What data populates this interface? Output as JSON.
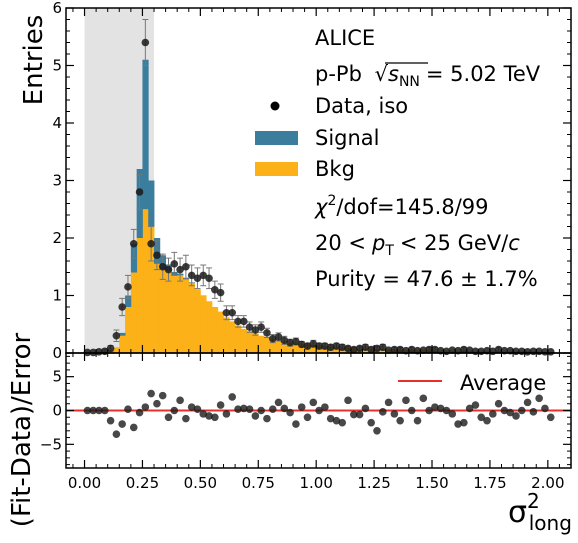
{
  "chart_data": [
    {
      "type": "bar",
      "subtype": "stacked-histogram-with-points",
      "ylabel": "Entries",
      "ylim": [
        0,
        6
      ],
      "xlim": [
        -0.08,
        2.1
      ],
      "yticks": [
        "0",
        "1",
        "2",
        "3",
        "4",
        "5",
        "6"
      ],
      "shaded_region": [
        0.0,
        0.3
      ],
      "bin_width": 0.025,
      "series": [
        {
          "name": "Signal",
          "color": "#3b7d9c",
          "x": [
            0.15,
            0.175,
            0.2,
            0.225,
            0.25,
            0.275,
            0.3,
            0.325,
            0.35,
            0.375,
            0.4,
            0.425,
            0.45,
            0.475,
            0.5
          ],
          "values": [
            0.05,
            0.2,
            0.5,
            1.2,
            2.6,
            0.8,
            0.45,
            0.25,
            0.12,
            0.06,
            0.03,
            0.02,
            0.01,
            0.005,
            0.002
          ]
        },
        {
          "name": "Bkg",
          "color": "#fbb117",
          "x": [
            0.0,
            0.025,
            0.05,
            0.075,
            0.1,
            0.125,
            0.15,
            0.175,
            0.2,
            0.225,
            0.25,
            0.275,
            0.3,
            0.325,
            0.35,
            0.375,
            0.4,
            0.425,
            0.45,
            0.475,
            0.5,
            0.525,
            0.55,
            0.575,
            0.6,
            0.625,
            0.65,
            0.675,
            0.7,
            0.725,
            0.75,
            0.775,
            0.8,
            0.825,
            0.85,
            0.875,
            0.9,
            0.925,
            0.95,
            0.975,
            1.0,
            1.025,
            1.05,
            1.075,
            1.1,
            1.125,
            1.15,
            1.175,
            1.2,
            1.225,
            1.25,
            1.275,
            1.3,
            1.325,
            1.35,
            1.375,
            1.4,
            1.425,
            1.45,
            1.475,
            1.5,
            1.525,
            1.55,
            1.575,
            1.6,
            1.625,
            1.65,
            1.675,
            1.7,
            1.725,
            1.75,
            1.775,
            1.8,
            1.825,
            1.85,
            1.875,
            1.9,
            1.925,
            1.95,
            1.975
          ],
          "values": [
            0.01,
            0.01,
            0.02,
            0.03,
            0.05,
            0.1,
            0.3,
            0.8,
            1.4,
            2.0,
            2.5,
            2.2,
            1.55,
            1.45,
            1.42,
            1.35,
            1.35,
            1.28,
            1.22,
            1.1,
            1.0,
            0.9,
            0.8,
            0.72,
            0.62,
            0.55,
            0.48,
            0.42,
            0.38,
            0.34,
            0.3,
            0.27,
            0.25,
            0.22,
            0.2,
            0.18,
            0.17,
            0.16,
            0.15,
            0.14,
            0.13,
            0.12,
            0.11,
            0.1,
            0.1,
            0.09,
            0.09,
            0.08,
            0.08,
            0.07,
            0.07,
            0.07,
            0.06,
            0.06,
            0.06,
            0.05,
            0.05,
            0.05,
            0.05,
            0.05,
            0.04,
            0.04,
            0.04,
            0.04,
            0.04,
            0.04,
            0.04,
            0.03,
            0.03,
            0.03,
            0.03,
            0.03,
            0.03,
            0.03,
            0.03,
            0.03,
            0.03,
            0.03,
            0.02,
            0.02
          ]
        },
        {
          "name": "Data, iso",
          "type": "scatter",
          "color": "#222222",
          "x": [
            0.0,
            0.025,
            0.05,
            0.075,
            0.1,
            0.125,
            0.15,
            0.175,
            0.2,
            0.225,
            0.25,
            0.275,
            0.3,
            0.325,
            0.35,
            0.375,
            0.4,
            0.425,
            0.45,
            0.475,
            0.5,
            0.525,
            0.55,
            0.575,
            0.6,
            0.625,
            0.65,
            0.675,
            0.7,
            0.725,
            0.75,
            0.775,
            0.8,
            0.825,
            0.85,
            0.875,
            0.9,
            0.925,
            0.95,
            0.975,
            1.0,
            1.025,
            1.05,
            1.075,
            1.1,
            1.125,
            1.15,
            1.175,
            1.2,
            1.225,
            1.25,
            1.275,
            1.3,
            1.325,
            1.35,
            1.375,
            1.4,
            1.425,
            1.45,
            1.475,
            1.5,
            1.525,
            1.55,
            1.575,
            1.6,
            1.625,
            1.65,
            1.675,
            1.7,
            1.725,
            1.75,
            1.775,
            1.8,
            1.825,
            1.85,
            1.875,
            1.9,
            1.925,
            1.95,
            1.975,
            2.0
          ],
          "values": [
            0.01,
            0.01,
            0.02,
            0.03,
            0.08,
            0.3,
            0.8,
            1.15,
            1.9,
            2.8,
            5.4,
            1.9,
            1.7,
            1.5,
            1.45,
            1.55,
            1.45,
            1.5,
            1.35,
            1.3,
            1.35,
            1.3,
            1.1,
            1.05,
            0.7,
            0.7,
            0.55,
            0.55,
            0.45,
            0.4,
            0.45,
            0.35,
            0.25,
            0.28,
            0.22,
            0.18,
            0.2,
            0.15,
            0.12,
            0.16,
            0.12,
            0.12,
            0.1,
            0.12,
            0.1,
            0.08,
            0.06,
            0.08,
            0.1,
            0.06,
            0.08,
            0.1,
            0.05,
            0.06,
            0.06,
            0.04,
            0.06,
            0.04,
            0.05,
            0.06,
            0.06,
            0.04,
            0.03,
            0.05,
            0.04,
            0.06,
            0.05,
            0.03,
            0.03,
            0.04,
            0.03,
            0.06,
            0.04,
            0.04,
            0.03,
            0.03,
            0.02,
            0.03,
            0.03,
            0.02,
            0.02
          ],
          "errors": [
            0.02,
            0.02,
            0.03,
            0.04,
            0.05,
            0.1,
            0.15,
            0.2,
            0.25,
            0.3,
            0.4,
            0.3,
            0.25,
            0.22,
            0.2,
            0.2,
            0.2,
            0.2,
            0.18,
            0.18,
            0.18,
            0.18,
            0.15,
            0.15,
            0.12,
            0.12,
            0.1,
            0.1,
            0.09,
            0.09,
            0.09,
            0.08,
            0.07,
            0.07,
            0.07,
            0.06,
            0.06,
            0.05,
            0.05,
            0.06,
            0.05,
            0.05,
            0.05,
            0.05,
            0.05,
            0.04,
            0.04,
            0.04,
            0.05,
            0.04,
            0.04,
            0.05,
            0.03,
            0.04,
            0.04,
            0.03,
            0.04,
            0.03,
            0.03,
            0.04,
            0.04,
            0.03,
            0.03,
            0.03,
            0.03,
            0.04,
            0.03,
            0.03,
            0.03,
            0.03,
            0.03,
            0.04,
            0.03,
            0.03,
            0.03,
            0.03,
            0.02,
            0.03,
            0.03,
            0.02,
            0.02
          ]
        }
      ],
      "annotations": [
        "ALICE",
        "p-Pb √sNN = 5.02 TeV",
        "χ²/dof=145.8/99",
        "20 < pT < 25 GeV/c",
        "Purity = 47.6 ± 1.7%"
      ]
    },
    {
      "type": "scatter",
      "ylabel": "(Fit-Data)/Error",
      "xlabel": "σ²long",
      "ylim": [
        -8.5,
        8.5
      ],
      "xlim": [
        -0.08,
        2.1
      ],
      "yticks": [
        "−5",
        "0",
        "5"
      ],
      "xticks": [
        "0.00",
        "0.25",
        "0.50",
        "0.75",
        "1.00",
        "1.25",
        "1.50",
        "1.75",
        "2.00"
      ],
      "average": 0.0,
      "average_label": "Average",
      "average_color": "#e8302a",
      "x": [
        0.0,
        0.025,
        0.05,
        0.075,
        0.1,
        0.125,
        0.15,
        0.175,
        0.2,
        0.225,
        0.25,
        0.275,
        0.3,
        0.325,
        0.35,
        0.375,
        0.4,
        0.425,
        0.45,
        0.475,
        0.5,
        0.525,
        0.55,
        0.575,
        0.6,
        0.625,
        0.65,
        0.675,
        0.7,
        0.725,
        0.75,
        0.775,
        0.8,
        0.825,
        0.85,
        0.875,
        0.9,
        0.925,
        0.95,
        0.975,
        1.0,
        1.025,
        1.05,
        1.075,
        1.1,
        1.125,
        1.15,
        1.175,
        1.2,
        1.225,
        1.25,
        1.275,
        1.3,
        1.325,
        1.35,
        1.375,
        1.4,
        1.425,
        1.45,
        1.475,
        1.5,
        1.525,
        1.55,
        1.575,
        1.6,
        1.625,
        1.65,
        1.675,
        1.7,
        1.725,
        1.75,
        1.775,
        1.8,
        1.825,
        1.85,
        1.875,
        1.9,
        1.925,
        1.95,
        1.975,
        2.0
      ],
      "values": [
        0.0,
        0.0,
        0.0,
        0.0,
        -1.5,
        -3.5,
        -2.0,
        0.2,
        -2.5,
        -0.3,
        0.5,
        2.5,
        1.0,
        2.2,
        -1.0,
        0.0,
        1.5,
        -1.2,
        0.5,
        0.2,
        -0.5,
        -0.8,
        -1.0,
        0.8,
        -0.5,
        2.0,
        0.2,
        0.3,
        0.2,
        -0.8,
        0.0,
        -1.2,
        0.2,
        1.2,
        0.3,
        -0.3,
        -2.0,
        0.5,
        -1.0,
        1.2,
        0.0,
        0.5,
        -1.2,
        -1.5,
        -1.8,
        1.5,
        -0.6,
        -0.6,
        0.3,
        -1.8,
        -3.0,
        -0.2,
        1.2,
        -0.5,
        -1.5,
        1.5,
        0.0,
        -1.5,
        1.8,
        0.0,
        0.5,
        0.3,
        0.0,
        -0.5,
        -2.0,
        -1.8,
        0.3,
        0.8,
        -1.0,
        -1.5,
        -0.5,
        1.0,
        0.0,
        -0.3,
        -0.8,
        0.0,
        1.2,
        -0.2,
        1.8,
        0.3,
        -1.0
      ]
    }
  ],
  "legend": {
    "title": "ALICE",
    "system": "p-Pb",
    "energy_value": "= 5.02 TeV",
    "sqrt_sym": "√",
    "energy_s": "s",
    "energy_sub": "NN",
    "data_label": "Data, iso",
    "signal_label": "Signal",
    "bkg_label": "Bkg",
    "chi_sym": "χ",
    "chi_sup": "2",
    "chi_rest": "/dof=145.8/99",
    "pt_left": "20 <",
    "pt_p": "p",
    "pt_sub": "T",
    "pt_right": "< 25 GeV/",
    "pt_c": "c",
    "purity": "Purity = 47.6 ± 1.7%"
  },
  "xlabel_parts": {
    "sigma": "σ",
    "sup": "2",
    "sub": "long"
  }
}
